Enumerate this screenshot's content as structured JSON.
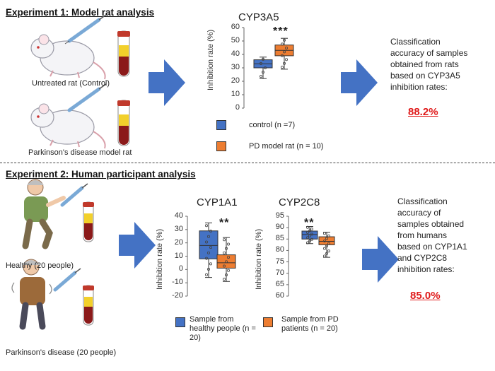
{
  "experiment1": {
    "heading": "Experiment 1: Model rat analysis",
    "control_label": "Untreated rat (Control)",
    "model_label": "Parkinson's disease model rat",
    "result_text": [
      "Classification",
      "accuracy of samples",
      "obtained from rats",
      "based on CYP3A5",
      "inhibition rates:"
    ],
    "result_value": "88.2%"
  },
  "experiment2": {
    "heading": "Experiment 2: Human participant analysis",
    "healthy_label": "Healthy (20 people)",
    "pd_label": "Parkinson's disease (20 people)",
    "result_text": [
      "Classification",
      "accuracy of",
      "samples obtained",
      "from humans",
      "based on CYP1A1",
      "and CYP2C8",
      "inhibition rates:"
    ],
    "result_value": "85.0%"
  },
  "colors": {
    "control": "#4472c4",
    "pd": "#ed7d31",
    "result": "#e01b1b",
    "arrow": "#4472c4"
  },
  "chart_data": [
    {
      "type": "box",
      "title": "CYP3A5",
      "ylabel": "Inhibition rate (%)",
      "ylim": [
        0,
        60
      ],
      "ticks": [
        0,
        10,
        20,
        30,
        40,
        50,
        60
      ],
      "significance": "***",
      "series": [
        {
          "name": "control (n =7)",
          "whisker_low": 22,
          "q1": 30,
          "median": 33,
          "q3": 36,
          "whisker_high": 38
        },
        {
          "name": "PD model rat (n = 10)",
          "whisker_low": 29,
          "q1": 39,
          "median": 43,
          "q3": 47,
          "whisker_high": 52
        }
      ]
    },
    {
      "type": "box",
      "title": "CYP1A1",
      "ylabel": "Inhibition rate (%)",
      "ylim": [
        -20,
        40
      ],
      "ticks": [
        -20,
        -10,
        0,
        10,
        20,
        30,
        40
      ],
      "significance": "**",
      "series": [
        {
          "name": "Sample from healthy people (n = 20)",
          "whisker_low": -6,
          "q1": 8,
          "median": 18,
          "q3": 29,
          "whisker_high": 35
        },
        {
          "name": "Sample from PD patients (n = 20)",
          "whisker_low": -9,
          "q1": 1,
          "median": 5,
          "q3": 11,
          "whisker_high": 24
        }
      ]
    },
    {
      "type": "box",
      "title": "CYP2C8",
      "ylabel": "Inhibition rate (%)",
      "ylim": [
        60,
        95
      ],
      "ticks": [
        60,
        65,
        70,
        75,
        80,
        85,
        90,
        95
      ],
      "significance": "**",
      "series": [
        {
          "name": "Sample from healthy people (n = 20)",
          "whisker_low": 83,
          "q1": 85,
          "median": 87,
          "q3": 88.5,
          "whisker_high": 90.5
        },
        {
          "name": "Sample from PD patients (n = 20)",
          "whisker_low": 77,
          "q1": 82.5,
          "median": 84,
          "q3": 86,
          "whisker_high": 88
        }
      ]
    }
  ],
  "legend1": [
    {
      "label": "control (n =7)"
    },
    {
      "label": "PD model rat (n = 10)"
    }
  ],
  "legend2": [
    {
      "label": "Sample from healthy people (n = 20)"
    },
    {
      "label": "Sample from PD patients (n = 20)"
    }
  ]
}
